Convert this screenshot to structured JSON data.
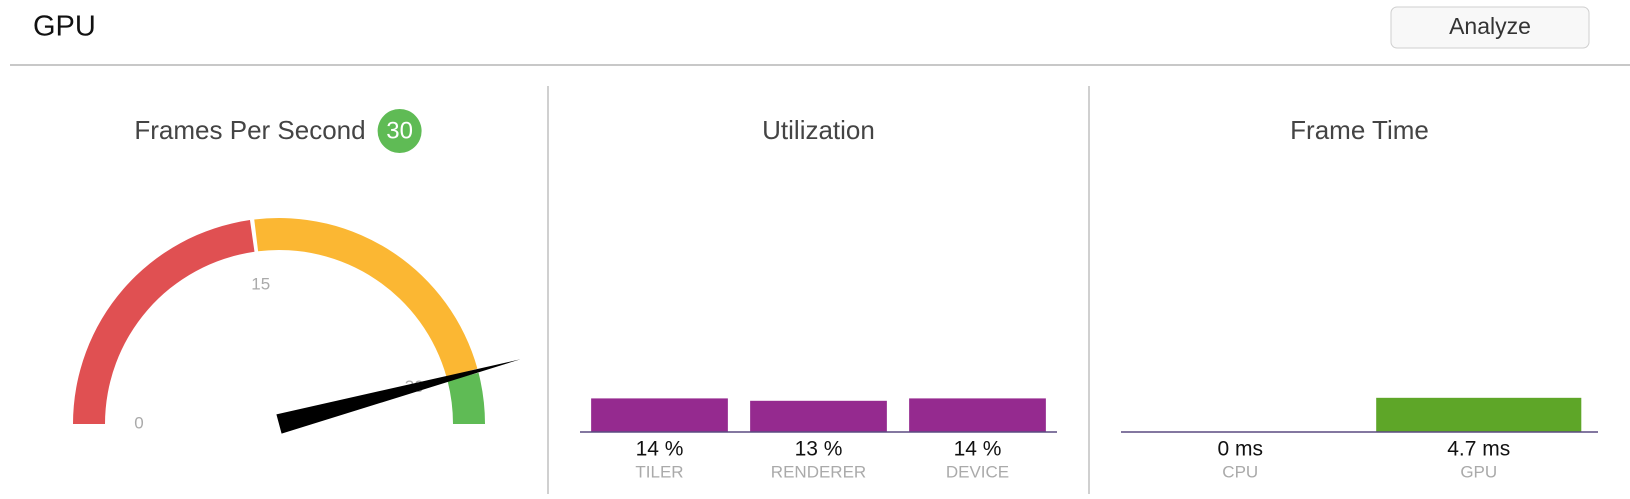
{
  "header": {
    "title": "GPU",
    "button": "Analyze"
  },
  "chart_data": [
    {
      "type": "gauge",
      "title": "Frames Per Second",
      "value": 30,
      "ylim": [
        0,
        35
      ],
      "yticks": [
        0,
        15,
        30
      ],
      "bands": [
        {
          "from": 0,
          "to": 15,
          "color": "#e05052"
        },
        {
          "from": 15,
          "to": 30,
          "color": "#fbb733"
        },
        {
          "from": 30,
          "to": 35,
          "color": "#5fbb55"
        }
      ],
      "badge_color": "#5fbb55"
    },
    {
      "type": "bar",
      "title": "Utilization",
      "categories": [
        "TILER",
        "RENDERER",
        "DEVICE"
      ],
      "values": [
        14,
        13,
        14
      ],
      "value_labels": [
        "14 %",
        "13 %",
        "14 %"
      ],
      "color": "#952a8f",
      "ylim": [
        0,
        100
      ]
    },
    {
      "type": "bar",
      "title": "Frame Time",
      "categories": [
        "CPU",
        "GPU"
      ],
      "values": [
        0,
        4.7
      ],
      "value_labels": [
        "0 ms",
        "4.7 ms"
      ],
      "color": "#5ea628",
      "ylim": [
        0,
        33
      ]
    }
  ]
}
